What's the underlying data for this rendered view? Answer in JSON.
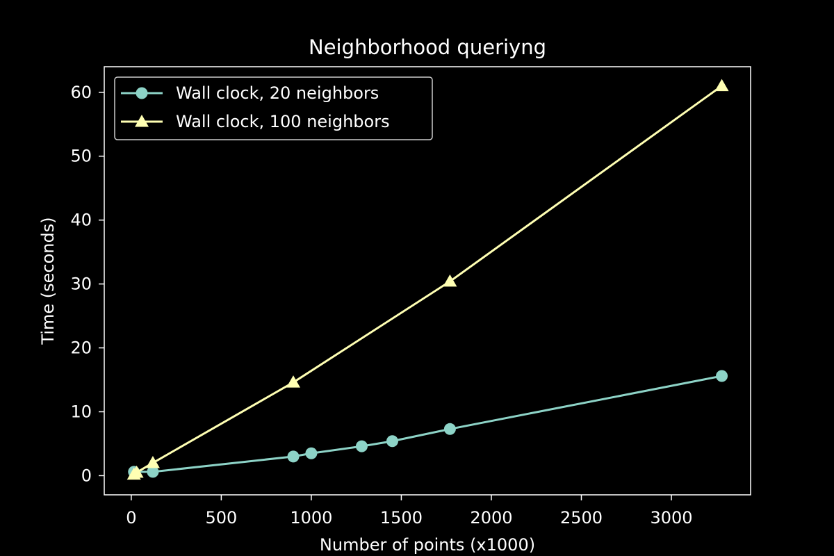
{
  "chart_data": {
    "type": "line",
    "title": "Neighborhood queriyng",
    "xlabel": "Number of points (x1000)",
    "ylabel": "Time (seconds)",
    "xlim": [
      -150,
      3440
    ],
    "ylim": [
      -3,
      64
    ],
    "xticks": [
      0,
      500,
      1000,
      1500,
      2000,
      2500,
      3000
    ],
    "yticks": [
      0,
      10,
      20,
      30,
      40,
      50,
      60
    ],
    "grid": false,
    "legend": "upper left",
    "series": [
      {
        "name": "Wall clock, 20 neighbors",
        "color": "#8dd3c7",
        "marker": "circle",
        "x": [
          15,
          120,
          900,
          1000,
          1280,
          1450,
          1770,
          3280
        ],
        "y": [
          0.6,
          0.6,
          3.0,
          3.5,
          4.6,
          5.4,
          7.3,
          15.6
        ]
      },
      {
        "name": "Wall clock, 100 neighbors",
        "color": "#ffffb3",
        "marker": "triangle",
        "x": [
          15,
          30,
          120,
          900,
          1770,
          3280
        ],
        "y": [
          0.2,
          0.5,
          2.0,
          14.6,
          30.4,
          61.0
        ]
      }
    ]
  }
}
